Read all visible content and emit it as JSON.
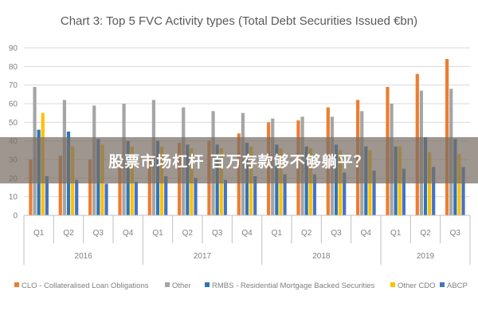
{
  "overlay_caption": "股票市场杠杆 百万存款够不够躺平？",
  "colors": {
    "CLO": "#ed7d31",
    "Other": "#a5a5a5",
    "RMBS": "#2e75b6",
    "OtherCDO": "#ffc000",
    "ABCP": "#4472c4",
    "grid": "#d9d9d9",
    "overlay": "#786e64"
  },
  "chart_data": {
    "type": "bar",
    "title": "Chart 3: Top 5 FVC Activity types (Total Debt Securities Issued €bn)",
    "xlabel": "",
    "ylabel": "",
    "ylim": [
      0,
      90
    ],
    "yticks": [
      0,
      10,
      20,
      30,
      40,
      50,
      60,
      70,
      80,
      90
    ],
    "grid": true,
    "legend_position": "bottom",
    "categories": [
      "Q1",
      "Q2",
      "Q3",
      "Q4",
      "Q1",
      "Q2",
      "Q3",
      "Q4",
      "Q1",
      "Q2",
      "Q3",
      "Q4",
      "Q1",
      "Q2",
      "Q3"
    ],
    "years": [
      {
        "label": "2016",
        "count": 4
      },
      {
        "label": "2017",
        "count": 4
      },
      {
        "label": "2018",
        "count": 4
      },
      {
        "label": "2019",
        "count": 3
      }
    ],
    "series": [
      {
        "name": "CLO - Collateralised Loan Obligations",
        "key": "CLO",
        "values": [
          30,
          32,
          30,
          30,
          31,
          39,
          40,
          44,
          50,
          51,
          58,
          62,
          69,
          76,
          84
        ]
      },
      {
        "name": "Other",
        "key": "Other",
        "values": [
          69,
          62,
          59,
          60,
          62,
          58,
          56,
          55,
          52,
          53,
          53,
          56,
          60,
          67,
          68
        ]
      },
      {
        "name": "RMBS - Residential Mortgage Backed Securities",
        "key": "RMBS",
        "values": [
          46,
          45,
          41,
          40,
          40,
          38,
          38,
          39,
          38,
          37,
          38,
          37,
          37,
          42,
          41
        ]
      },
      {
        "name": "Other CDO",
        "key": "OtherCDO",
        "values": [
          55,
          37,
          38,
          37,
          37,
          36,
          36,
          37,
          36,
          36,
          35,
          35,
          37,
          34,
          33
        ]
      },
      {
        "name": "ABCP",
        "key": "ABCP",
        "values": [
          21,
          19,
          17,
          18,
          21,
          20,
          19,
          21,
          22,
          22,
          23,
          24,
          25,
          26,
          26
        ]
      }
    ]
  }
}
